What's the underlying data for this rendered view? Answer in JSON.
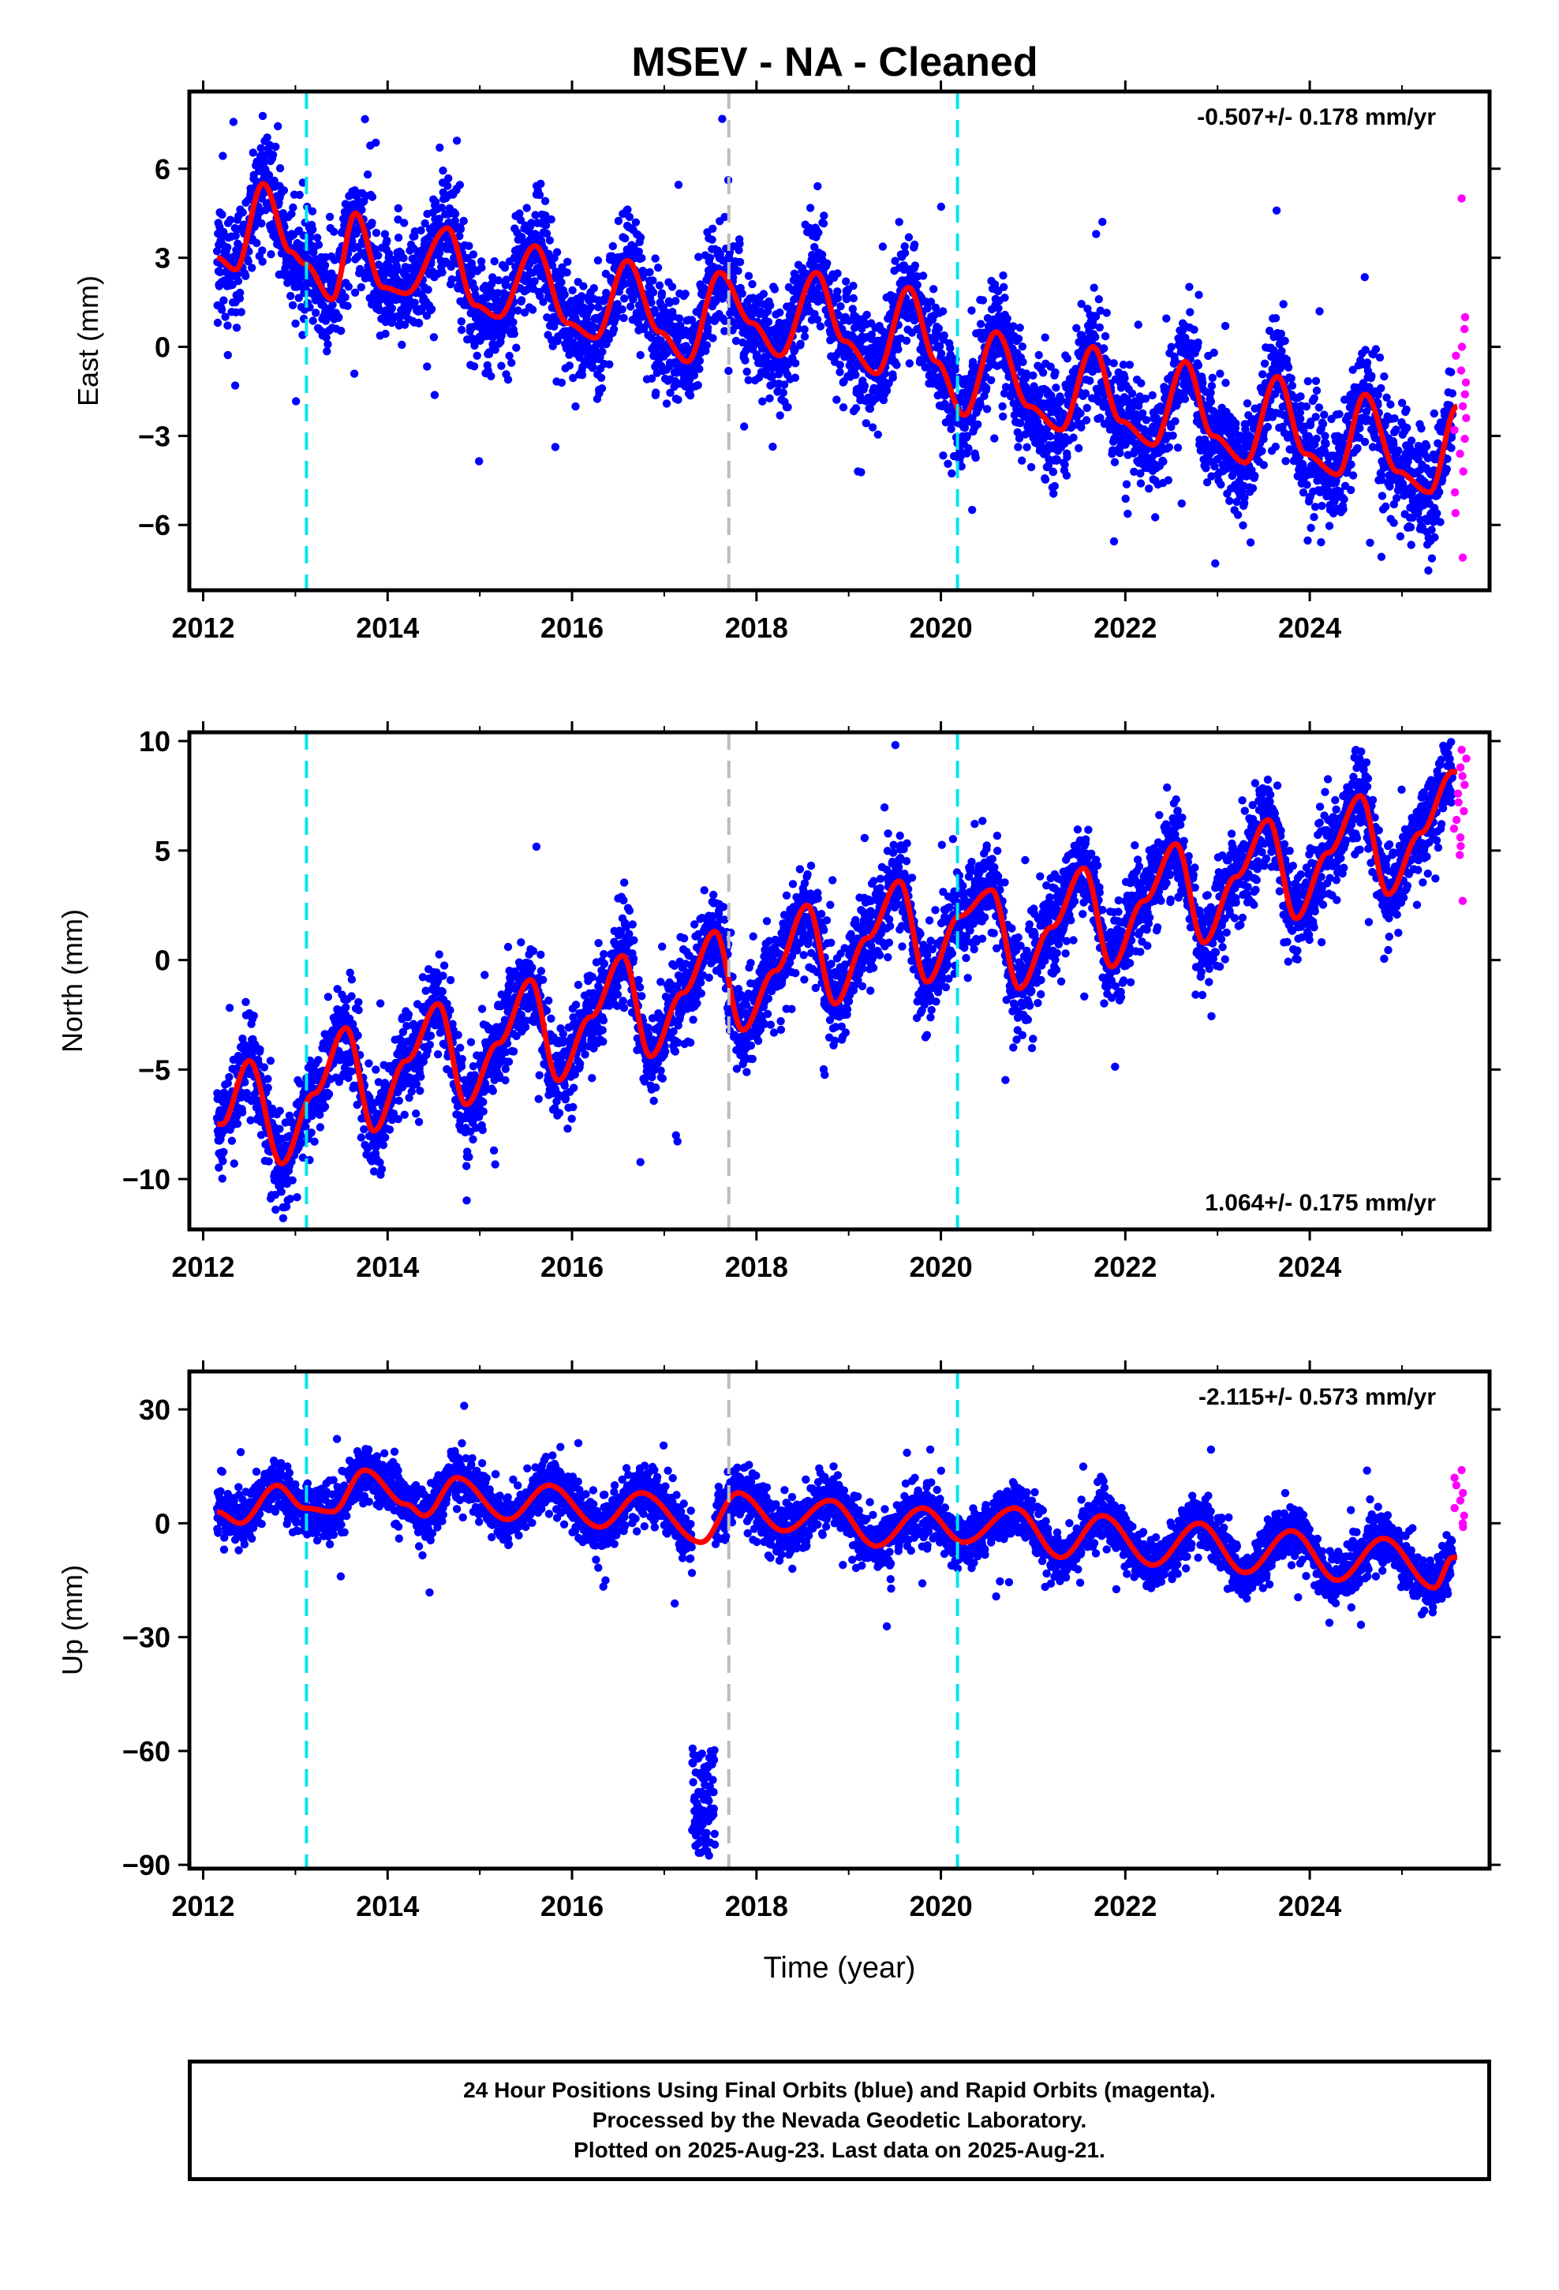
{
  "title": "MSEV  - NA - Cleaned",
  "colors": {
    "final": "#0000ff",
    "rapid": "#ff00ff",
    "model": "#ff0000",
    "equipment_change": "#00e5ee",
    "gray_break": "#bbbbbb"
  },
  "footer": {
    "line1": "24 Hour Positions Using Final Orbits (blue) and Rapid Orbits (magenta).",
    "line2": "Processed by the Nevada Geodetic Laboratory.",
    "line3": "Plotted on 2025-Aug-23. Last data on 2025-Aug-21."
  },
  "chart_data": [
    {
      "type": "scatter",
      "component": "East",
      "ylabel": "East (mm)",
      "xlabel": "",
      "rate_label": "-0.507+/- 0.178 mm/yr",
      "rate_position": "top-right",
      "xlim": [
        2011.85,
        2025.95
      ],
      "ylim": [
        -8.2,
        8.6
      ],
      "xticks": [
        2012,
        2014,
        2016,
        2018,
        2020,
        2022,
        2024
      ],
      "yticks": [
        6,
        3,
        0,
        -3,
        -6
      ],
      "ytick_labels": [
        "6",
        "3",
        "0",
        "−3",
        "−6"
      ],
      "vlines_cyan": [
        2013.12,
        2020.18
      ],
      "vlines_gray": [
        2017.7
      ],
      "model": {
        "rate": -0.507,
        "intercept": 3.2,
        "annual": [
          {
            "amp": 2.2,
            "peak": 0.62
          }
        ],
        "semiannual_amp": 0.55
      },
      "scatter_sd": 1.15,
      "series": [
        {
          "values": [
            [
              2012.15,
              3.0
            ],
            [
              2012.35,
              2.6
            ],
            [
              2012.65,
              5.5
            ],
            [
              2012.95,
              3.2
            ],
            [
              2013.1,
              2.8
            ],
            [
              2013.4,
              1.6
            ],
            [
              2013.65,
              4.5
            ],
            [
              2013.95,
              2.0
            ],
            [
              2014.2,
              1.8
            ],
            [
              2014.65,
              4.0
            ],
            [
              2014.95,
              1.4
            ],
            [
              2015.2,
              1.0
            ],
            [
              2015.6,
              3.4
            ],
            [
              2015.95,
              0.8
            ],
            [
              2016.25,
              0.3
            ],
            [
              2016.6,
              2.9
            ],
            [
              2016.95,
              0.5
            ],
            [
              2017.25,
              -0.5
            ],
            [
              2017.6,
              2.5
            ],
            [
              2017.95,
              0.8
            ],
            [
              2018.25,
              -0.3
            ],
            [
              2018.65,
              2.5
            ],
            [
              2018.95,
              0.2
            ],
            [
              2019.3,
              -0.9
            ],
            [
              2019.65,
              2.0
            ],
            [
              2019.95,
              -0.5
            ],
            [
              2020.25,
              -2.3
            ],
            [
              2020.6,
              0.5
            ],
            [
              2020.95,
              -2.0
            ],
            [
              2021.3,
              -2.8
            ],
            [
              2021.65,
              0.0
            ],
            [
              2021.95,
              -2.5
            ],
            [
              2022.3,
              -3.3
            ],
            [
              2022.65,
              -0.5
            ],
            [
              2022.95,
              -3.0
            ],
            [
              2023.3,
              -3.9
            ],
            [
              2023.65,
              -1.0
            ],
            [
              2023.95,
              -3.6
            ],
            [
              2024.3,
              -4.3
            ],
            [
              2024.6,
              -1.6
            ],
            [
              2024.95,
              -4.2
            ],
            [
              2025.3,
              -4.9
            ],
            [
              2025.6,
              -2.0
            ]
          ]
        }
      ],
      "rapid_values": [
        5.0,
        1.0,
        0.6,
        0.0,
        -0.3,
        -0.8,
        -1.2,
        -1.6,
        -2.0,
        -2.4,
        -2.8,
        -3.1,
        -3.6,
        -4.2,
        -4.9,
        -5.6,
        -7.1
      ]
    },
    {
      "type": "scatter",
      "component": "North",
      "ylabel": "North (mm)",
      "xlabel": "",
      "rate_label": "1.064+/- 0.175 mm/yr",
      "rate_position": "bottom-right",
      "xlim": [
        2011.85,
        2025.95
      ],
      "ylim": [
        -12.3,
        10.4
      ],
      "xticks": [
        2012,
        2014,
        2016,
        2018,
        2020,
        2022,
        2024
      ],
      "yticks": [
        10,
        5,
        0,
        -5,
        -10
      ],
      "ytick_labels": [
        "10",
        "5",
        "0",
        "−5",
        "−10"
      ],
      "vlines_cyan": [
        2013.12,
        2020.18
      ],
      "vlines_gray": [
        2017.7
      ],
      "model": {
        "rate": 1.064,
        "intercept": -7.0,
        "annual": [
          {
            "amp": 2.3,
            "peak": 0.55
          }
        ],
        "semiannual_amp": 0.4
      },
      "scatter_sd": 1.35,
      "series": [
        {
          "values": [
            [
              2012.2,
              -7.5
            ],
            [
              2012.5,
              -4.6
            ],
            [
              2012.85,
              -9.3
            ],
            [
              2013.2,
              -6.1
            ],
            [
              2013.55,
              -3.1
            ],
            [
              2013.85,
              -7.8
            ],
            [
              2014.2,
              -4.6
            ],
            [
              2014.55,
              -2.0
            ],
            [
              2014.85,
              -6.6
            ],
            [
              2015.2,
              -3.8
            ],
            [
              2015.55,
              -0.9
            ],
            [
              2015.85,
              -5.5
            ],
            [
              2016.2,
              -2.6
            ],
            [
              2016.55,
              0.2
            ],
            [
              2016.85,
              -4.4
            ],
            [
              2017.2,
              -1.5
            ],
            [
              2017.55,
              1.3
            ],
            [
              2017.85,
              -3.2
            ],
            [
              2018.2,
              -0.5
            ],
            [
              2018.55,
              2.5
            ],
            [
              2018.85,
              -2.0
            ],
            [
              2019.2,
              1.0
            ],
            [
              2019.55,
              3.6
            ],
            [
              2019.85,
              -1.0
            ],
            [
              2020.2,
              2.0
            ],
            [
              2020.55,
              3.2
            ],
            [
              2020.85,
              -1.3
            ],
            [
              2021.2,
              1.5
            ],
            [
              2021.55,
              4.2
            ],
            [
              2021.85,
              -0.3
            ],
            [
              2022.2,
              2.7
            ],
            [
              2022.55,
              5.3
            ],
            [
              2022.85,
              0.8
            ],
            [
              2023.2,
              3.8
            ],
            [
              2023.55,
              6.4
            ],
            [
              2023.85,
              1.9
            ],
            [
              2024.2,
              4.9
            ],
            [
              2024.55,
              7.5
            ],
            [
              2024.85,
              3.0
            ],
            [
              2025.2,
              5.8
            ],
            [
              2025.55,
              8.6
            ]
          ]
        }
      ],
      "rapid_values": [
        9.6,
        9.2,
        8.8,
        8.4,
        8.0,
        7.6,
        7.2,
        6.8,
        6.4,
        6.0,
        5.6,
        5.2,
        4.8,
        2.7
      ]
    },
    {
      "type": "scatter",
      "component": "Up",
      "ylabel": "Up (mm)",
      "xlabel": "Time (year)",
      "rate_label": "-2.115+/- 0.573 mm/yr",
      "rate_position": "top-right",
      "xlim": [
        2011.85,
        2025.95
      ],
      "ylim": [
        -91,
        40
      ],
      "xticks": [
        2012,
        2014,
        2016,
        2018,
        2020,
        2022,
        2024
      ],
      "yticks": [
        30,
        0,
        -30,
        -60,
        -90
      ],
      "ytick_labels": [
        "30",
        "0",
        "−30",
        "−60",
        "−90"
      ],
      "vlines_cyan": [
        2013.12,
        2020.18
      ],
      "vlines_gray": [
        2017.7
      ],
      "model": {
        "rate": -2.115,
        "intercept": 4.0,
        "annual": [
          {
            "amp": 6.0,
            "peak": 0.8
          }
        ],
        "semiannual_amp": 0.6
      },
      "scatter_sd": 4.5,
      "outlier_cluster": {
        "x_range": [
          2017.3,
          2017.55
        ],
        "y_range": [
          -88,
          -59
        ]
      },
      "series": [
        {
          "values": [
            [
              2012.15,
              3.0
            ],
            [
              2012.4,
              0.0
            ],
            [
              2012.8,
              10.0
            ],
            [
              2013.1,
              4.0
            ],
            [
              2013.4,
              3.0
            ],
            [
              2013.75,
              14.0
            ],
            [
              2014.2,
              5.0
            ],
            [
              2014.4,
              2.0
            ],
            [
              2014.75,
              12.0
            ],
            [
              2015.3,
              1.0
            ],
            [
              2015.75,
              10.0
            ],
            [
              2016.3,
              -1.0
            ],
            [
              2016.75,
              8.0
            ],
            [
              2017.4,
              -5.0
            ],
            [
              2017.8,
              8.0
            ],
            [
              2018.3,
              -2.0
            ],
            [
              2018.8,
              6.0
            ],
            [
              2019.3,
              -6.0
            ],
            [
              2019.8,
              4.0
            ],
            [
              2020.25,
              -5.0
            ],
            [
              2020.8,
              4.0
            ],
            [
              2021.3,
              -9.0
            ],
            [
              2021.75,
              2.0
            ],
            [
              2022.3,
              -11.0
            ],
            [
              2022.8,
              0.0
            ],
            [
              2023.3,
              -13.0
            ],
            [
              2023.8,
              -2.0
            ],
            [
              2024.3,
              -15.0
            ],
            [
              2024.8,
              -4.0
            ],
            [
              2025.35,
              -17.0
            ],
            [
              2025.55,
              -9.0
            ]
          ]
        }
      ],
      "rapid_values": [
        14,
        12,
        10,
        8,
        6,
        4,
        2,
        0,
        -1
      ]
    }
  ]
}
